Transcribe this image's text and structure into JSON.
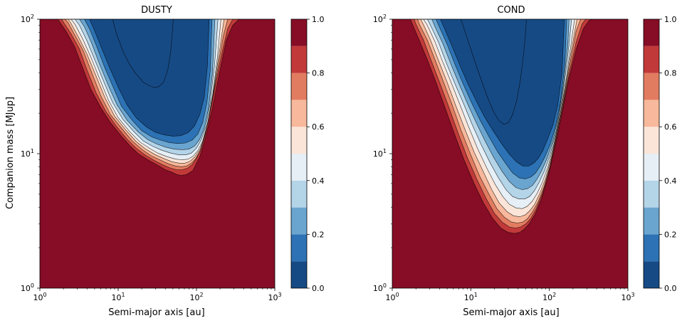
{
  "chart_data": [
    {
      "type": "heatmap",
      "subtype": "filled-contour",
      "title": "DUSTY",
      "xlabel": "Semi-major axis [au]",
      "ylabel": "Companion mass [MJup]",
      "xscale": "log",
      "yscale": "log",
      "xlim": [
        1,
        1000
      ],
      "ylim": [
        1,
        100
      ],
      "x_ticks": [
        {
          "base": "10",
          "exp": "0"
        },
        {
          "base": "10",
          "exp": "1"
        },
        {
          "base": "10",
          "exp": "2"
        },
        {
          "base": "10",
          "exp": "3"
        }
      ],
      "y_ticks": [
        {
          "base": "10",
          "exp": "0"
        },
        {
          "base": "10",
          "exp": "1"
        },
        {
          "base": "10",
          "exp": "2"
        }
      ],
      "colorbar": {
        "levels": [
          0.0,
          0.1,
          0.2,
          0.3,
          0.4,
          0.5,
          0.6,
          0.7,
          0.8,
          0.9,
          1.0
        ],
        "tick_labels": [
          "0.0",
          "0.2",
          "0.4",
          "0.6",
          "0.8",
          "1.0"
        ],
        "colors": [
          "#164a85",
          "#2c72b4",
          "#6aa5d0",
          "#b4d4e8",
          "#e6eff6",
          "#fbe5d8",
          "#f7b89b",
          "#e27c61",
          "#c2393a",
          "#860d25"
        ]
      },
      "contours": [
        {
          "level": 0.1,
          "x": [
            1.7,
            1.8,
            2.2,
            2.8,
            3.5,
            4.5,
            6,
            8,
            11,
            14,
            18,
            24,
            32,
            40,
            48,
            56,
            64,
            75,
            90,
            100,
            110,
            130,
            160,
            200,
            240,
            290,
            350
          ],
          "y": [
            100,
            95,
            80,
            62,
            44,
            30,
            22,
            17,
            13.5,
            11.5,
            10,
            9,
            8.2,
            7.6,
            7.3,
            7.0,
            6.9,
            7.0,
            7.5,
            8.5,
            9.5,
            13,
            22,
            42,
            70,
            90,
            100
          ]
        },
        {
          "level": 0.2,
          "x": [
            1.9,
            2.0,
            2.5,
            3.2,
            4,
            5.2,
            7,
            9.5,
            13,
            17,
            22,
            29,
            38,
            47,
            56,
            66,
            77,
            88,
            100,
            115,
            140,
            170,
            210,
            250,
            290
          ],
          "y": [
            100,
            95,
            78,
            60,
            42,
            28.5,
            20.5,
            16,
            12.8,
            11,
            9.8,
            8.9,
            8.2,
            7.8,
            7.6,
            7.6,
            7.8,
            8.3,
            9.2,
            11,
            17,
            30,
            55,
            85,
            100
          ]
        },
        {
          "level": 0.3,
          "x": [
            2.1,
            2.3,
            2.8,
            3.6,
            4.6,
            6,
            8,
            11,
            15,
            20,
            26,
            34,
            44,
            54,
            64,
            75,
            86,
            98,
            112,
            130,
            155,
            185,
            220,
            250
          ],
          "y": [
            100,
            94,
            76,
            58,
            40,
            27,
            19.5,
            15.5,
            12.5,
            10.8,
            9.7,
            9,
            8.4,
            8.1,
            8.0,
            8.1,
            8.5,
            9.2,
            10.5,
            14,
            23,
            42,
            75,
            100
          ]
        },
        {
          "level": 0.4,
          "x": [
            2.3,
            2.5,
            3.1,
            4,
            5.2,
            6.8,
            9,
            12.5,
            17,
            22,
            29,
            38,
            49,
            60,
            71,
            83,
            96,
            110,
            125,
            145,
            170,
            200,
            225
          ],
          "y": [
            100,
            93,
            74,
            55,
            38,
            26,
            19,
            15,
            12.3,
            10.9,
            9.9,
            9.2,
            8.7,
            8.5,
            8.5,
            8.8,
            9.5,
            10.7,
            13,
            19,
            33,
            62,
            100
          ]
        },
        {
          "level": 0.5,
          "x": [
            2.5,
            2.8,
            3.5,
            4.5,
            5.8,
            7.5,
            10,
            14,
            19,
            25,
            32,
            42,
            54,
            66,
            78,
            91,
            105,
            120,
            138,
            160,
            185,
            205
          ],
          "y": [
            100,
            92,
            72,
            52,
            36,
            25,
            18.5,
            14.6,
            12.2,
            11,
            10.1,
            9.5,
            9.1,
            9.0,
            9.1,
            9.6,
            10.6,
            12.5,
            16.5,
            27,
            52,
            100
          ]
        },
        {
          "level": 0.6,
          "x": [
            2.8,
            3.2,
            4,
            5.1,
            6.6,
            8.5,
            11.5,
            16,
            21,
            28,
            36,
            47,
            60,
            73,
            86,
            100,
            115,
            132,
            150,
            170,
            188
          ],
          "y": [
            100,
            90,
            69,
            49,
            34,
            24,
            18,
            14.5,
            12.4,
            11.3,
            10.6,
            10.1,
            9.8,
            9.8,
            10.1,
            11,
            12.7,
            16,
            24,
            45,
            100
          ]
        },
        {
          "level": 0.7,
          "x": [
            3.2,
            3.7,
            4.6,
            5.8,
            7.5,
            9.7,
            13,
            18,
            24,
            31,
            40,
            52,
            66,
            80,
            95,
            110,
            126,
            143,
            160,
            172
          ],
          "y": [
            100,
            88,
            66,
            46,
            32,
            23,
            17.7,
            14.5,
            12.7,
            11.8,
            11.2,
            10.8,
            10.7,
            10.8,
            11.4,
            12.8,
            15.5,
            22,
            40,
            100
          ]
        },
        {
          "level": 0.8,
          "x": [
            3.7,
            4.3,
            5.3,
            6.7,
            8.7,
            11,
            15,
            20,
            27,
            35,
            45,
            57,
            72,
            88,
            104,
            120,
            136,
            150,
            158
          ],
          "y": [
            100,
            85,
            63,
            44,
            31,
            22.5,
            17.8,
            14.8,
            13.3,
            12.6,
            12.1,
            11.9,
            12,
            12.6,
            14,
            17,
            24,
            42,
            100
          ]
        },
        {
          "level": 0.9,
          "x": [
            4.3,
            5,
            6.2,
            8,
            10.2,
            13,
            17,
            23,
            30,
            39,
            50,
            62,
            78,
            94,
            110,
            125,
            138,
            145
          ],
          "y": [
            100,
            82,
            60,
            42,
            30.5,
            23,
            18.5,
            15.8,
            14.4,
            13.8,
            13.5,
            13.6,
            14.3,
            16,
            19.5,
            26,
            45,
            100
          ]
        },
        {
          "level": 1.0,
          "x": [
            8.5,
            9.5,
            11.5,
            14,
            17,
            21,
            25,
            29,
            33,
            38,
            43,
            47,
            49,
            50.5
          ],
          "y": [
            100,
            78,
            58,
            46,
            39,
            34,
            32,
            31,
            31.5,
            34,
            42,
            58,
            78,
            100
          ]
        }
      ]
    },
    {
      "type": "heatmap",
      "subtype": "filled-contour",
      "title": "COND",
      "xlabel": "Semi-major axis [au]",
      "ylabel": "",
      "xscale": "log",
      "yscale": "log",
      "xlim": [
        1,
        1000
      ],
      "ylim": [
        1,
        100
      ],
      "x_ticks": [
        {
          "base": "10",
          "exp": "0"
        },
        {
          "base": "10",
          "exp": "1"
        },
        {
          "base": "10",
          "exp": "2"
        },
        {
          "base": "10",
          "exp": "3"
        }
      ],
      "y_ticks": [
        {
          "base": "10",
          "exp": "0"
        },
        {
          "base": "10",
          "exp": "1"
        },
        {
          "base": "10",
          "exp": "2"
        }
      ],
      "colorbar": {
        "levels": [
          0.0,
          0.1,
          0.2,
          0.3,
          0.4,
          0.5,
          0.6,
          0.7,
          0.8,
          0.9,
          1.0
        ],
        "tick_labels": [
          "0.0",
          "0.2",
          "0.4",
          "0.6",
          "0.8",
          "1.0"
        ],
        "colors": [
          "#164a85",
          "#2c72b4",
          "#6aa5d0",
          "#b4d4e8",
          "#e6eff6",
          "#fbe5d8",
          "#f7b89b",
          "#e27c61",
          "#c2393a",
          "#860d25"
        ]
      },
      "contours": [
        {
          "level": 0.1,
          "x": [
            1.7,
            1.8,
            2.2,
            2.8,
            3.6,
            4.7,
            6.2,
            8.2,
            11,
            14.5,
            19,
            24,
            30,
            36,
            42,
            48,
            55,
            65,
            78,
            95,
            115,
            140,
            175,
            220,
            270,
            320,
            350
          ],
          "y": [
            100,
            92,
            70,
            50,
            34,
            22,
            14,
            9,
            6,
            4.3,
            3.3,
            2.8,
            2.6,
            2.55,
            2.6,
            2.75,
            3.0,
            3.5,
            4.5,
            6.5,
            10.5,
            18,
            35,
            60,
            85,
            98,
            100
          ]
        },
        {
          "level": 0.2,
          "x": [
            1.9,
            2.0,
            2.5,
            3.1,
            4,
            5.2,
            6.8,
            9,
            12,
            15.5,
            20,
            25,
            31,
            37,
            43,
            50,
            58,
            68,
            81,
            98,
            118,
            145,
            180,
            220,
            260,
            290
          ],
          "y": [
            100,
            92,
            70,
            50,
            34,
            22.5,
            14.5,
            9.4,
            6.4,
            4.7,
            3.6,
            3.1,
            2.85,
            2.8,
            2.85,
            3.0,
            3.3,
            3.9,
            5,
            7.3,
            12,
            21,
            40,
            68,
            92,
            100
          ]
        },
        {
          "level": 0.3,
          "x": [
            2.1,
            2.2,
            2.8,
            3.5,
            4.5,
            5.8,
            7.5,
            10,
            13,
            17,
            21.5,
            27,
            33,
            39,
            46,
            53,
            61,
            72,
            86,
            103,
            125,
            152,
            185,
            220,
            250
          ],
          "y": [
            100,
            92,
            70,
            50,
            34,
            23,
            15,
            9.8,
            6.8,
            5,
            3.9,
            3.35,
            3.1,
            3.05,
            3.1,
            3.3,
            3.7,
            4.4,
            5.7,
            8.3,
            14,
            25,
            48,
            82,
            100
          ]
        },
        {
          "level": 0.4,
          "x": [
            2.3,
            2.5,
            3.1,
            3.9,
            5,
            6.4,
            8.3,
            11,
            14.5,
            18.5,
            23,
            29,
            35,
            42,
            49,
            56,
            65,
            76,
            90,
            108,
            130,
            158,
            190,
            225
          ],
          "y": [
            100,
            91,
            69,
            49,
            34,
            23,
            15.5,
            10.3,
            7.3,
            5.4,
            4.3,
            3.7,
            3.45,
            3.4,
            3.5,
            3.75,
            4.2,
            5.1,
            6.6,
            9.8,
            16.5,
            30,
            58,
            100
          ]
        },
        {
          "level": 0.5,
          "x": [
            2.5,
            2.8,
            3.5,
            4.4,
            5.6,
            7.2,
            9.3,
            12.2,
            16,
            20.5,
            25.5,
            31,
            37.5,
            45,
            52,
            60,
            69,
            81,
            96,
            115,
            138,
            165,
            195,
            210
          ],
          "y": [
            100,
            90,
            68,
            48,
            34,
            23.5,
            16,
            10.9,
            7.8,
            5.9,
            4.8,
            4.2,
            3.95,
            3.9,
            4.05,
            4.4,
            5,
            6.1,
            8,
            12,
            20,
            37,
            75,
            100
          ]
        },
        {
          "level": 0.6,
          "x": [
            2.8,
            3.1,
            3.9,
            4.9,
            6.3,
            8.1,
            10.4,
            13.6,
            17.7,
            22.5,
            28,
            34,
            41,
            48.5,
            56,
            64.5,
            74,
            87,
            103,
            123,
            146,
            170,
            192
          ],
          "y": [
            100,
            89,
            67,
            47,
            33,
            23.5,
            16.5,
            11.6,
            8.5,
            6.6,
            5.4,
            4.8,
            4.6,
            4.6,
            4.8,
            5.3,
            6.1,
            7.5,
            10,
            15,
            26,
            50,
            100
          ]
        },
        {
          "level": 0.7,
          "x": [
            3.2,
            3.5,
            4.4,
            5.6,
            7.1,
            9.1,
            11.7,
            15.2,
            19.7,
            25,
            31,
            37.5,
            45,
            53,
            61,
            70,
            80,
            94,
            111,
            131,
            153,
            172,
            178
          ],
          "y": [
            100,
            88,
            66,
            46,
            33,
            23.5,
            17,
            12.4,
            9.3,
            7.4,
            6.2,
            5.6,
            5.4,
            5.5,
            5.8,
            6.5,
            7.5,
            9.3,
            12.5,
            19,
            34,
            65,
            100
          ]
        },
        {
          "level": 0.8,
          "x": [
            3.6,
            4,
            5,
            6.3,
            8,
            10.2,
            13.1,
            17,
            22,
            28,
            34,
            41.5,
            49.5,
            58,
            67,
            76.5,
            88,
            103,
            120,
            140,
            158,
            166
          ],
          "y": [
            100,
            87,
            65,
            46,
            33,
            24,
            17.8,
            13.4,
            10.3,
            8.4,
            7.2,
            6.6,
            6.5,
            6.7,
            7.2,
            8.1,
            9.5,
            11.8,
            16,
            25,
            48,
            100
          ]
        },
        {
          "level": 0.9,
          "x": [
            4.1,
            4.6,
            5.7,
            7.2,
            9.1,
            11.6,
            14.8,
            19.2,
            24.8,
            31,
            38,
            46,
            54.5,
            63.5,
            73,
            83,
            95,
            111,
            128,
            145,
            155
          ],
          "y": [
            100,
            86,
            64,
            46,
            33.5,
            25,
            19,
            14.8,
            11.8,
            9.9,
            8.7,
            8.1,
            8.1,
            8.5,
            9.3,
            10.6,
            12.8,
            16.3,
            23,
            40,
            100
          ]
        },
        {
          "level": 1.0,
          "x": [
            7.5,
            8.5,
            10.5,
            13,
            16,
            19.5,
            23,
            26.5,
            30,
            34,
            38.5,
            43,
            47,
            50,
            51
          ],
          "y": [
            100,
            80,
            55,
            38,
            27,
            20.5,
            17.5,
            16.5,
            17,
            19.5,
            25,
            36,
            55,
            82,
            100
          ]
        }
      ]
    }
  ]
}
